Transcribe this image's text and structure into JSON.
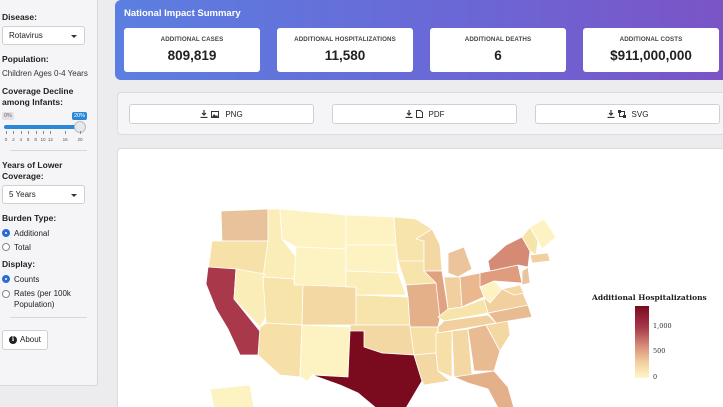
{
  "sidebar": {
    "disease_label": "Disease:",
    "disease_value": "Rotavirus",
    "population_label": "Population:",
    "population_value": "Children Ages 0-4 Years",
    "coverage_label": "Coverage Decline among Infants:",
    "slider": {
      "min_badge": "0%",
      "max_badge": "20%",
      "value_percent": 20,
      "ticks": [
        "0",
        "2",
        "4",
        "6",
        "8",
        "10",
        "12",
        "16",
        "20"
      ]
    },
    "years_label": "Years of Lower Coverage:",
    "years_value": "5 Years",
    "burden_label": "Burden Type:",
    "burden_options": [
      "Additional",
      "Total"
    ],
    "burden_selected": 0,
    "display_label": "Display:",
    "display_options": [
      "Counts",
      "Rates (per 100k Population)"
    ],
    "display_selected": 0,
    "about_label": "About"
  },
  "summary": {
    "title": "National Impact Summary",
    "cards": [
      {
        "label": "ADDITIONAL CASES",
        "value": "809,819"
      },
      {
        "label": "ADDITIONAL HOSPITALIZATIONS",
        "value": "11,580"
      },
      {
        "label": "ADDITIONAL DEATHS",
        "value": "6"
      },
      {
        "label": "ADDITIONAL COSTS",
        "value": "$911,000,000"
      }
    ]
  },
  "downloads": {
    "png": "PNG",
    "pdf": "PDF",
    "svg": "SVG"
  },
  "map": {
    "legend_title": "Additional Hospitalizations",
    "legend_labels": [
      "1,000",
      "500",
      "0"
    ],
    "colors": {
      "high": "#7a0a1e",
      "low": "#fff7c8"
    }
  },
  "colors": {
    "accent": "#2b88d8",
    "banner_start": "#5b7fe0",
    "banner_end": "#7b54c6"
  }
}
